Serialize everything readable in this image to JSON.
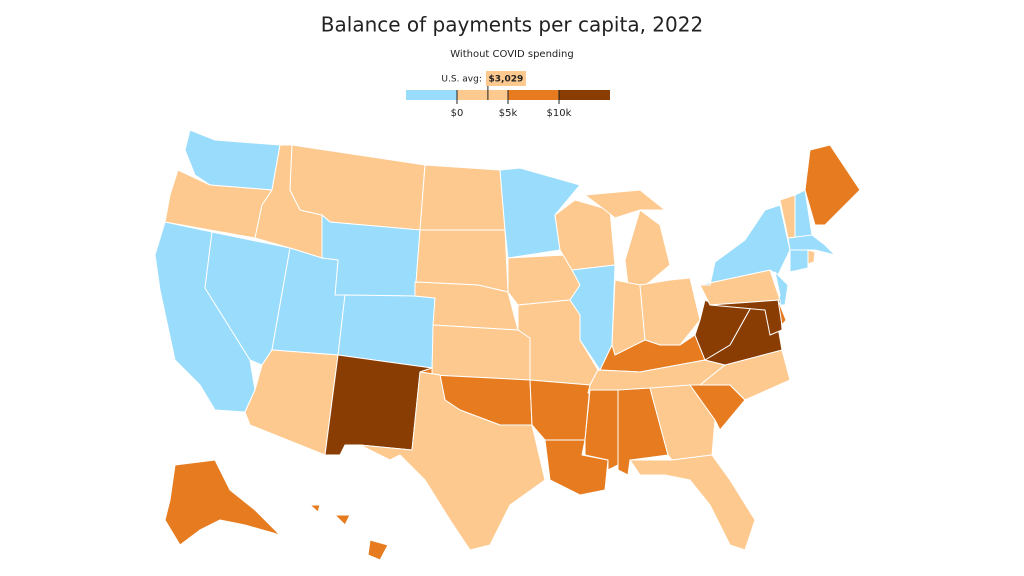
{
  "title": "Balance of payments per capita, 2022",
  "subtitle": "Without COVID spending",
  "legend": {
    "xlim": [
      -5000,
      15000
    ],
    "colors": [
      "#99dcfb",
      "#fdc98e",
      "#e67b1f",
      "#8a3d03"
    ],
    "ticks": [
      {
        "value": 0,
        "label": "$0"
      },
      {
        "value": 5000,
        "label": "$5k"
      },
      {
        "value": 10000,
        "label": "$10k"
      }
    ],
    "avg_label": "U.S. avg:",
    "avg": {
      "value": 3029,
      "label": "$3,029"
    }
  },
  "map": {
    "regions": [
      "#99dcfb",
      "#fdc98e",
      "#99dcfb",
      "#99dcfb",
      "#fdc98e",
      "#fdc98e",
      "#99dcfb",
      "#99dcfb",
      "#99dcfb",
      "#fdc98e",
      "#8a3d03",
      "#fdc98e",
      "#fdc98e",
      "#fdc98e",
      "#fdc98e",
      "#e67b1f",
      "#fdc98e",
      "#99dcfb",
      "#fdc98e",
      "#fdc98e",
      "#e67b1f",
      "#e67b1f",
      "#fdc98e",
      "#99dcfb",
      "#fdc98e",
      "#fdc98e",
      "#fdc98e",
      "#e67b1f",
      "#fdc98e",
      "#e67b1f",
      "#e67b1f",
      "#fdc98e",
      "#fdc98e",
      "#e67b1f",
      "#fdc98e",
      "#8a3d03",
      "#8a3d03",
      "#fdc98e",
      "#99dcfb",
      "#99dcfb",
      "#8a3d03",
      "#e67b1f",
      "#fdc98e",
      "#99dcfb",
      "#e67b1f",
      "#99dcfb",
      "#99dcfb",
      "#fdc98e",
      "#e67b1f",
      "#e67b1f"
    ]
  }
}
